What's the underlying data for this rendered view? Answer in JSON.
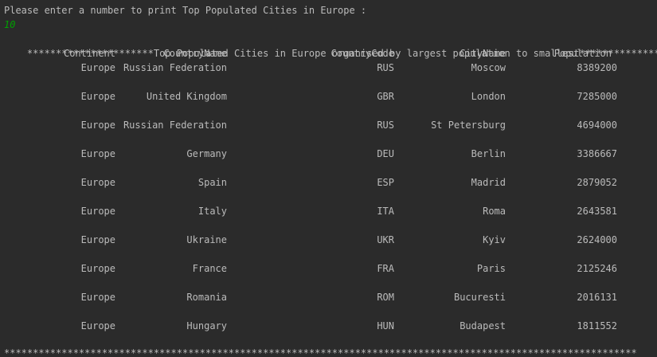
{
  "console": {
    "prompt": "Please enter a number to print Top Populated Cities in Europe :",
    "input_value": "10",
    "banner": "**********************Top Populated Cities in Europe organised by largest population to smallest********************",
    "footer": "**************************************************************************************************************"
  },
  "table": {
    "headers": [
      "Continent",
      "CountryName",
      "CountryCode",
      "CityName",
      "Population"
    ],
    "rows": [
      [
        "Europe",
        "Russian Federation",
        "RUS",
        "Moscow",
        "8389200"
      ],
      [
        "Europe",
        "United Kingdom",
        "GBR",
        "London",
        "7285000"
      ],
      [
        "Europe",
        "Russian Federation",
        "RUS",
        "St Petersburg",
        "4694000"
      ],
      [
        "Europe",
        "Germany",
        "DEU",
        "Berlin",
        "3386667"
      ],
      [
        "Europe",
        "Spain",
        "ESP",
        "Madrid",
        "2879052"
      ],
      [
        "Europe",
        "Italy",
        "ITA",
        "Roma",
        "2643581"
      ],
      [
        "Europe",
        "Ukraine",
        "UKR",
        "Kyiv",
        "2624000"
      ],
      [
        "Europe",
        "France",
        "FRA",
        "Paris",
        "2125246"
      ],
      [
        "Europe",
        "Romania",
        "ROM",
        "Bucuresti",
        "2016131"
      ],
      [
        "Europe",
        "Hungary",
        "HUN",
        "Budapest",
        "1811552"
      ]
    ]
  },
  "colors": {
    "background": "#2b2b2b",
    "text": "#bbbbbb",
    "input": "#00a000"
  }
}
